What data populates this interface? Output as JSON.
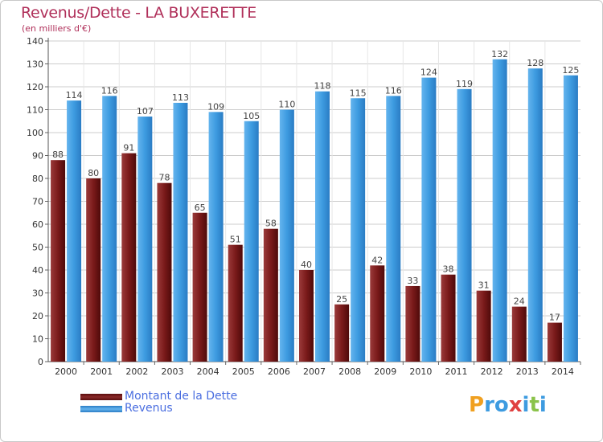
{
  "title": "Revenus/Dette - LA BUXERETTE",
  "subtitle": "(en milliers d'€)",
  "colors": {
    "dette": "#7a1a1a",
    "revenus": "#3d9be0",
    "title": "#b0305a",
    "legend_text": "#4a6ee0"
  },
  "legend": [
    {
      "label": "Montant de la Dette",
      "color": "#6e1414"
    },
    {
      "label": "Revenus",
      "color": "#3d9be0"
    }
  ],
  "logo": {
    "letters": [
      "P",
      "r",
      "o",
      "x",
      "i",
      "t",
      "i"
    ],
    "colors": [
      "#f0a020",
      "#3d9be0",
      "#3d9be0",
      "#e04040",
      "#3d9be0",
      "#8bc34a",
      "#3d9be0"
    ]
  },
  "chart_data": {
    "type": "bar",
    "title": "Revenus/Dette - LA BUXERETTE",
    "subtitle": "(en milliers d'€)",
    "categories": [
      "2000",
      "2001",
      "2002",
      "2003",
      "2004",
      "2005",
      "2006",
      "2007",
      "2008",
      "2009",
      "2010",
      "2011",
      "2012",
      "2013",
      "2014"
    ],
    "series": [
      {
        "name": "Montant de la Dette",
        "values": [
          88,
          80,
          91,
          78,
          65,
          51,
          58,
          40,
          25,
          42,
          33,
          38,
          31,
          24,
          17
        ]
      },
      {
        "name": "Revenus",
        "values": [
          114,
          116,
          107,
          113,
          109,
          105,
          110,
          118,
          115,
          116,
          124,
          119,
          132,
          128,
          125
        ]
      }
    ],
    "yticks": [
      0,
      10,
      20,
      30,
      40,
      50,
      60,
      70,
      80,
      90,
      100,
      110,
      120,
      130,
      140
    ],
    "ylim": [
      0,
      140
    ],
    "grid": true,
    "legend_position": "bottom-left"
  }
}
